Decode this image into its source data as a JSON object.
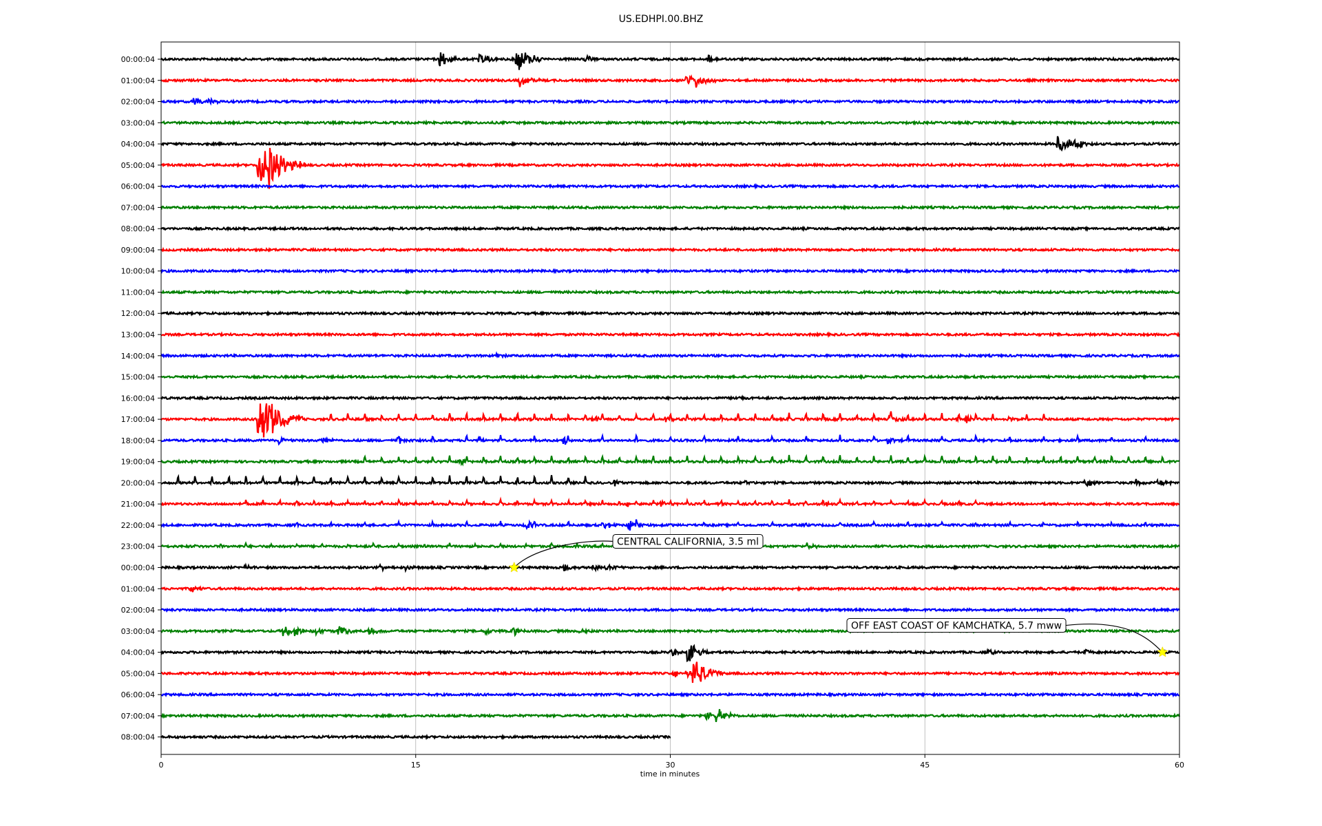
{
  "chart_data": {
    "type": "line",
    "title": "US.EDHPI.00.BHZ",
    "xlabel": "time in minutes",
    "ylabel": "",
    "xlim": [
      0,
      60
    ],
    "xticks": [
      0,
      15,
      30,
      45,
      60
    ],
    "grid": "vertical lines at x ticks",
    "trace_colors": [
      "#000000",
      "#ff0000",
      "#0000ff",
      "#008000"
    ],
    "rows": [
      {
        "label": "00:00:04",
        "end": 60,
        "events": [
          {
            "t": 16.5,
            "a": 1.0
          },
          {
            "t": 18.8,
            "a": 0.6
          },
          {
            "t": 19.2,
            "a": 0.5
          },
          {
            "t": 21.0,
            "a": 1.7
          },
          {
            "t": 21.5,
            "a": 0.4
          },
          {
            "t": 25.0,
            "a": 0.4
          },
          {
            "t": 32.3,
            "a": 0.5
          }
        ]
      },
      {
        "label": "01:00:04",
        "end": 60,
        "events": [
          {
            "t": 21.2,
            "a": 0.9
          },
          {
            "t": 31.0,
            "a": 0.8
          },
          {
            "t": 31.6,
            "a": 0.9
          }
        ]
      },
      {
        "label": "02:00:04",
        "end": 60,
        "events": [
          {
            "t": 2.0,
            "a": 0.6
          },
          {
            "t": 2.7,
            "a": 0.5
          }
        ]
      },
      {
        "label": "03:00:04",
        "end": 60,
        "events": []
      },
      {
        "label": "04:00:04",
        "end": 60,
        "events": [
          {
            "t": 52.9,
            "a": 1.0
          },
          {
            "t": 53.5,
            "a": 0.8
          },
          {
            "t": 54.2,
            "a": 0.4
          }
        ]
      },
      {
        "label": "05:00:04",
        "end": 60,
        "events": [
          {
            "t": 5.8,
            "a": 2.5
          },
          {
            "t": 6.2,
            "a": 2.8
          },
          {
            "t": 6.8,
            "a": 0.8
          },
          {
            "t": 7.7,
            "a": 0.6
          }
        ]
      },
      {
        "label": "06:00:04",
        "end": 60,
        "events": []
      },
      {
        "label": "07:00:04",
        "end": 60,
        "events": []
      },
      {
        "label": "08:00:04",
        "end": 60,
        "events": []
      },
      {
        "label": "09:00:04",
        "end": 60,
        "events": []
      },
      {
        "label": "10:00:04",
        "end": 60,
        "events": []
      },
      {
        "label": "11:00:04",
        "end": 60,
        "events": []
      },
      {
        "label": "12:00:04",
        "end": 60,
        "events": []
      },
      {
        "label": "13:00:04",
        "end": 60,
        "events": []
      },
      {
        "label": "14:00:04",
        "end": 60,
        "events": [
          {
            "t": 19.8,
            "a": 0.3
          }
        ]
      },
      {
        "label": "15:00:04",
        "end": 60,
        "events": []
      },
      {
        "label": "16:00:04",
        "end": 60,
        "events": [
          {
            "t": 33.8,
            "a": 0.3
          }
        ]
      },
      {
        "label": "17:00:04",
        "end": 60,
        "events": [
          {
            "t": 5.8,
            "a": 3.2
          },
          {
            "t": 6.5,
            "a": 0.6
          },
          {
            "t": 7.0,
            "a": 0.5
          },
          {
            "t": 25.5,
            "a": 0.4
          },
          {
            "t": 29.8,
            "a": 0.4
          },
          {
            "t": 43.0,
            "a": 0.5
          },
          {
            "t": 47.5,
            "a": 0.5
          },
          {
            "t": 50.0,
            "a": 0.5
          }
        ]
      },
      {
        "label": "18:00:04",
        "end": 60,
        "events": [
          {
            "t": 7.0,
            "a": 0.5
          },
          {
            "t": 9.5,
            "a": 0.4
          },
          {
            "t": 14.0,
            "a": 0.4
          },
          {
            "t": 18.8,
            "a": 0.4
          },
          {
            "t": 23.8,
            "a": 0.5
          },
          {
            "t": 42.8,
            "a": 0.4
          }
        ]
      },
      {
        "label": "19:00:04",
        "end": 60,
        "events": [
          {
            "t": 17.6,
            "a": 0.4
          }
        ]
      },
      {
        "label": "20:00:04",
        "end": 60,
        "events": [
          {
            "t": 26.8,
            "a": 0.4
          },
          {
            "t": 34.5,
            "a": 0.3
          },
          {
            "t": 54.5,
            "a": 0.6
          },
          {
            "t": 57.5,
            "a": 0.4
          },
          {
            "t": 58.8,
            "a": 0.4
          }
        ]
      },
      {
        "label": "21:00:04",
        "end": 60,
        "events": [
          {
            "t": 27.5,
            "a": 0.4
          },
          {
            "t": 29.5,
            "a": 0.3
          },
          {
            "t": 39.2,
            "a": 0.4
          }
        ]
      },
      {
        "label": "22:00:04",
        "end": 60,
        "events": [
          {
            "t": 21.5,
            "a": 0.6
          },
          {
            "t": 26.2,
            "a": 0.5
          },
          {
            "t": 27.6,
            "a": 0.8
          }
        ]
      },
      {
        "label": "23:00:04",
        "end": 60,
        "events": [
          {
            "t": 38.1,
            "a": 0.4
          }
        ]
      },
      {
        "label": "00:00:04",
        "end": 60,
        "events": [
          {
            "t": 5.0,
            "a": 0.3
          },
          {
            "t": 13.0,
            "a": 0.3
          },
          {
            "t": 14.5,
            "a": 0.3
          },
          {
            "t": 23.8,
            "a": 0.4
          },
          {
            "t": 25.5,
            "a": 0.4
          },
          {
            "t": 26.3,
            "a": 0.4
          }
        ]
      },
      {
        "label": "01:00:04",
        "end": 60,
        "events": [
          {
            "t": 1.8,
            "a": 0.5
          }
        ]
      },
      {
        "label": "02:00:04",
        "end": 60,
        "events": []
      },
      {
        "label": "03:00:04",
        "end": 60,
        "events": [
          {
            "t": 7.2,
            "a": 0.7
          },
          {
            "t": 7.9,
            "a": 0.7
          },
          {
            "t": 9.1,
            "a": 0.5
          },
          {
            "t": 10.5,
            "a": 0.9
          },
          {
            "t": 12.3,
            "a": 0.6
          },
          {
            "t": 19.2,
            "a": 0.4
          },
          {
            "t": 20.8,
            "a": 0.5
          },
          {
            "t": 24.7,
            "a": 0.4
          }
        ]
      },
      {
        "label": "04:00:04",
        "end": 60,
        "events": [
          {
            "t": 30.1,
            "a": 0.5
          },
          {
            "t": 31.1,
            "a": 1.2
          },
          {
            "t": 31.4,
            "a": 0.8
          },
          {
            "t": 48.8,
            "a": 0.3
          },
          {
            "t": 54.5,
            "a": 0.3
          }
        ]
      },
      {
        "label": "05:00:04",
        "end": 60,
        "events": [
          {
            "t": 30.3,
            "a": 0.5
          },
          {
            "t": 31.0,
            "a": 0.6
          },
          {
            "t": 31.4,
            "a": 1.9
          },
          {
            "t": 31.8,
            "a": 0.5
          }
        ]
      },
      {
        "label": "06:00:04",
        "end": 60,
        "events": []
      },
      {
        "label": "07:00:04",
        "end": 60,
        "events": [
          {
            "t": 32.2,
            "a": 0.5
          },
          {
            "t": 32.8,
            "a": 1.0
          }
        ]
      },
      {
        "label": "08:00:04",
        "end": 30,
        "events": []
      }
    ],
    "periodic_spikes": [
      {
        "row": 17,
        "start": 10.0,
        "step": 1.0,
        "end": 52.0,
        "up": 0.55
      },
      {
        "row": 18,
        "start": 14.0,
        "step": 2.0,
        "end": 59.0,
        "up": 0.45
      },
      {
        "row": 19,
        "start": 12.0,
        "step": 1.0,
        "end": 59.0,
        "up": 0.55
      },
      {
        "row": 20,
        "start": 1.0,
        "step": 1.0,
        "end": 25.0,
        "up": 0.65
      },
      {
        "row": 21,
        "start": 5.0,
        "step": 1.0,
        "end": 48.0,
        "up": 0.35
      },
      {
        "row": 22,
        "start": 8.0,
        "step": 2.0,
        "end": 58.0,
        "up": 0.3
      },
      {
        "row": 23,
        "start": 2.0,
        "step": 1.5,
        "end": 30.0,
        "up": 0.25
      }
    ],
    "annotations": [
      {
        "text": "CENTRAL CALIFORNIA, 3.5 ml",
        "row": 24,
        "t": 20.8
      },
      {
        "text": "OFF EAST COAST OF KAMCHATKA, 5.7 mww",
        "row": 28,
        "t": 59.0
      }
    ]
  }
}
